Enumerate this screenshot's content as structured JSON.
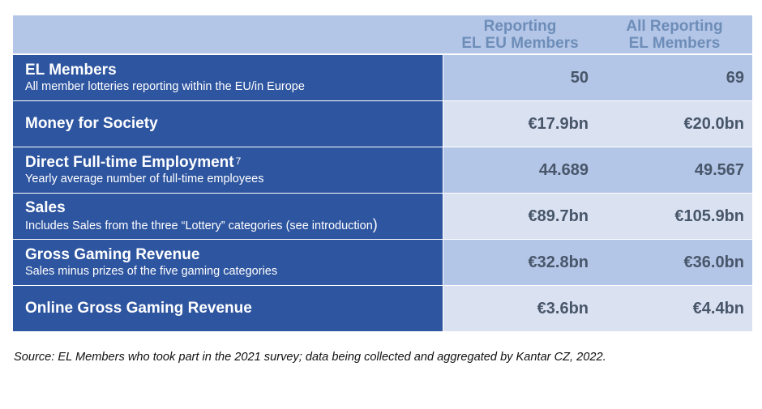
{
  "header": {
    "col_eu": [
      "Reporting",
      "EL EU Members"
    ],
    "col_all": [
      "All Reporting",
      "EL Members"
    ]
  },
  "rows": [
    {
      "title": "EL Members",
      "superscript": "",
      "subtitle": "All member lotteries reporting within the EU/in Europe",
      "subtitle_suffix": "",
      "eu_value": "50",
      "all_value": "69"
    },
    {
      "title": "Money for Society",
      "superscript": "",
      "subtitle": "",
      "subtitle_suffix": "",
      "eu_value": "€17.9bn",
      "all_value": "€20.0bn"
    },
    {
      "title": "Direct Full-time Employment",
      "superscript": "7",
      "subtitle": "Yearly average number of full-time employees",
      "subtitle_suffix": "",
      "eu_value": "44.689",
      "all_value": "49.567"
    },
    {
      "title": "Sales",
      "superscript": "",
      "subtitle": "Includes Sales from the three “Lottery” categories (see introduction",
      "subtitle_suffix": ")",
      "eu_value": "€89.7bn",
      "all_value": "€105.9bn"
    },
    {
      "title": "Gross Gaming Revenue",
      "superscript": "",
      "subtitle": "Sales minus prizes of the five gaming categories",
      "subtitle_suffix": "",
      "eu_value": "€32.8bn",
      "all_value": "€36.0bn"
    },
    {
      "title": "Online Gross Gaming Revenue",
      "superscript": "",
      "subtitle": "",
      "subtitle_suffix": "",
      "eu_value": "€3.6bn",
      "all_value": "€4.4bn"
    }
  ],
  "source": "Source: EL Members who took part in the 2021 survey; data being collected and aggregated by Kantar CZ, 2022.",
  "colors": {
    "header_bg": "#b4c6e7",
    "header_text": "#6d8db8",
    "label_bg": "#2e55a0",
    "value_bg_odd": "#b4c6e7",
    "value_bg_even": "#dae2f2",
    "value_text": "#48566a"
  }
}
